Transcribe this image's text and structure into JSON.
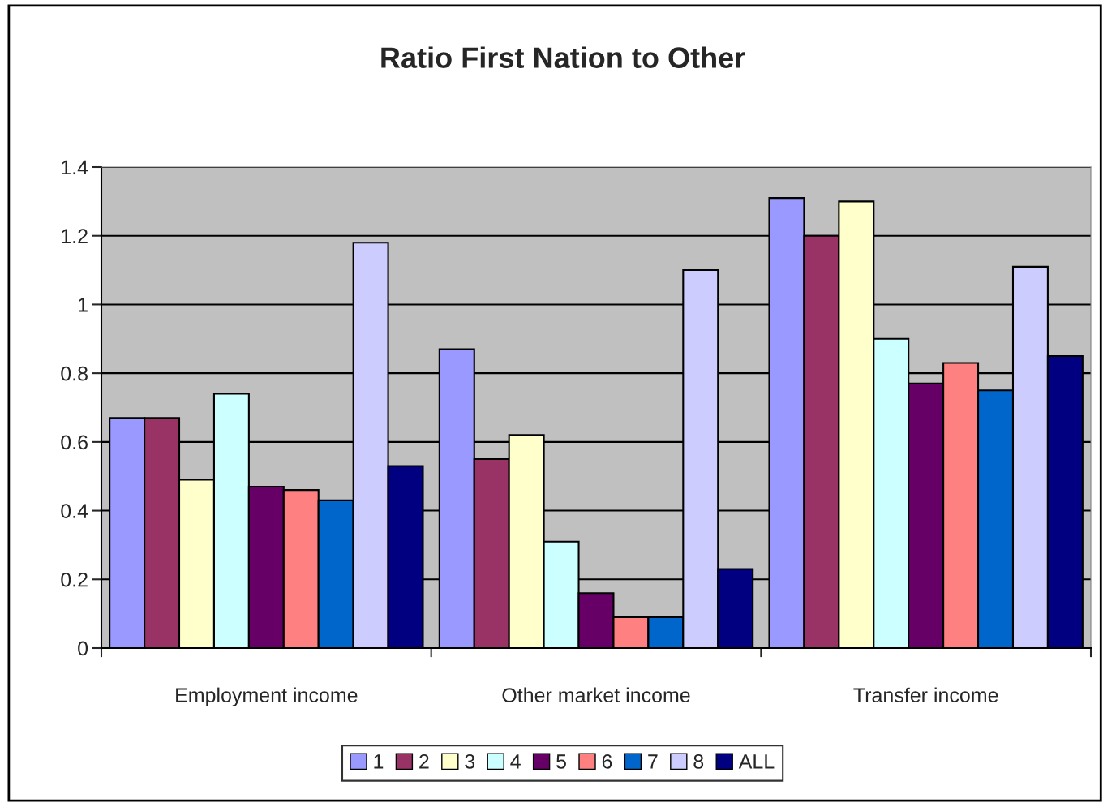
{
  "chart_data": {
    "type": "bar",
    "title": "Ratio First Nation to Other",
    "categories": [
      "Employment income",
      "Other market income",
      "Transfer income"
    ],
    "series": [
      {
        "name": "1",
        "color": "#9999ff",
        "values": [
          0.67,
          0.87,
          1.31
        ]
      },
      {
        "name": "2",
        "color": "#993366",
        "values": [
          0.67,
          0.55,
          1.2
        ]
      },
      {
        "name": "3",
        "color": "#ffffcc",
        "values": [
          0.49,
          0.62,
          1.3
        ]
      },
      {
        "name": "4",
        "color": "#ccffff",
        "values": [
          0.74,
          0.31,
          0.9
        ]
      },
      {
        "name": "5",
        "color": "#660066",
        "values": [
          0.47,
          0.16,
          0.77
        ]
      },
      {
        "name": "6",
        "color": "#ff8080",
        "values": [
          0.46,
          0.09,
          0.83
        ]
      },
      {
        "name": "7",
        "color": "#0066cc",
        "values": [
          0.43,
          0.09,
          0.75
        ]
      },
      {
        "name": "8",
        "color": "#ccccff",
        "values": [
          1.18,
          1.1,
          1.11
        ]
      },
      {
        "name": "ALL",
        "color": "#000080",
        "values": [
          0.53,
          0.23,
          0.85
        ]
      }
    ],
    "ylim": [
      0,
      1.4
    ],
    "yticks": [
      0,
      0.2,
      0.4,
      0.6,
      0.8,
      1,
      1.2,
      1.4
    ],
    "grid": "y",
    "legend": "bottom"
  }
}
